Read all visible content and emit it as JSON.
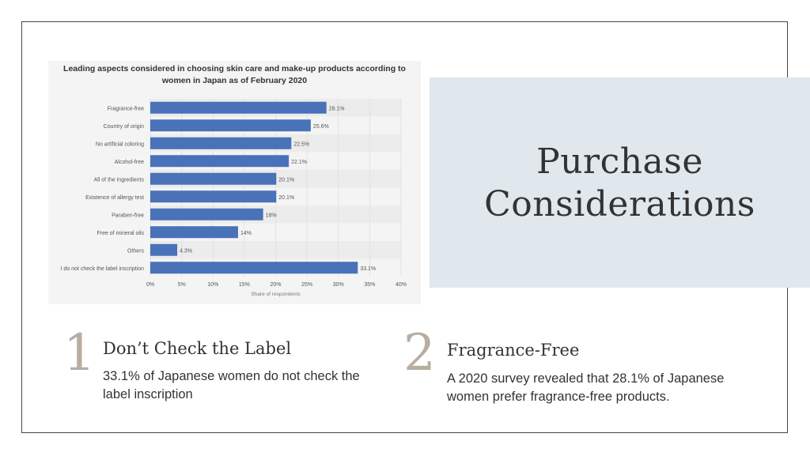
{
  "chart_data": {
    "type": "bar",
    "orientation": "horizontal",
    "title": "Leading aspects considered in choosing skin care and make-up products according to women in Japan as of February 2020",
    "categories": [
      "Fragrance-free",
      "Country of origin",
      "No artificial coloring",
      "Alcohol-free",
      "All of the ingredients",
      "Existence of allergy test",
      "Paraben-free",
      "Free of mineral oils",
      "Others",
      "I do not check the label inscription"
    ],
    "values": [
      28.1,
      25.6,
      22.5,
      22.1,
      20.1,
      20.1,
      18,
      14,
      4.3,
      33.1
    ],
    "data_labels": [
      "28.1%",
      "25.6%",
      "22.5%",
      "22.1%",
      "20.1%",
      "20.1%",
      "18%",
      "14%",
      "4.3%",
      "33.1%"
    ],
    "xlabel": "Share of respondents",
    "ylabel": "",
    "xlim": [
      0,
      40
    ],
    "ticks": [
      0,
      5,
      10,
      15,
      20,
      25,
      30,
      35,
      40
    ],
    "tick_labels": [
      "0%",
      "5%",
      "10%",
      "15%",
      "20%",
      "25%",
      "30%",
      "35%",
      "40%"
    ],
    "grid": true,
    "bar_color": "#4a72b8"
  },
  "slide": {
    "heading_line1": "Purchase",
    "heading_line2": "Considerations",
    "panel_color": "#e0e7ed",
    "accent_number_color": "#b8ada1"
  },
  "points": [
    {
      "number": "1",
      "title": "Don’t Check the Label",
      "text_line1": "33.1% of Japanese women do not check the",
      "text_line2": "label inscription"
    },
    {
      "number": "2",
      "title": "Fragrance-Free",
      "text_line1": "A 2020 survey revealed that 28.1% of Japanese",
      "text_line2": "women prefer fragrance-free products."
    }
  ]
}
